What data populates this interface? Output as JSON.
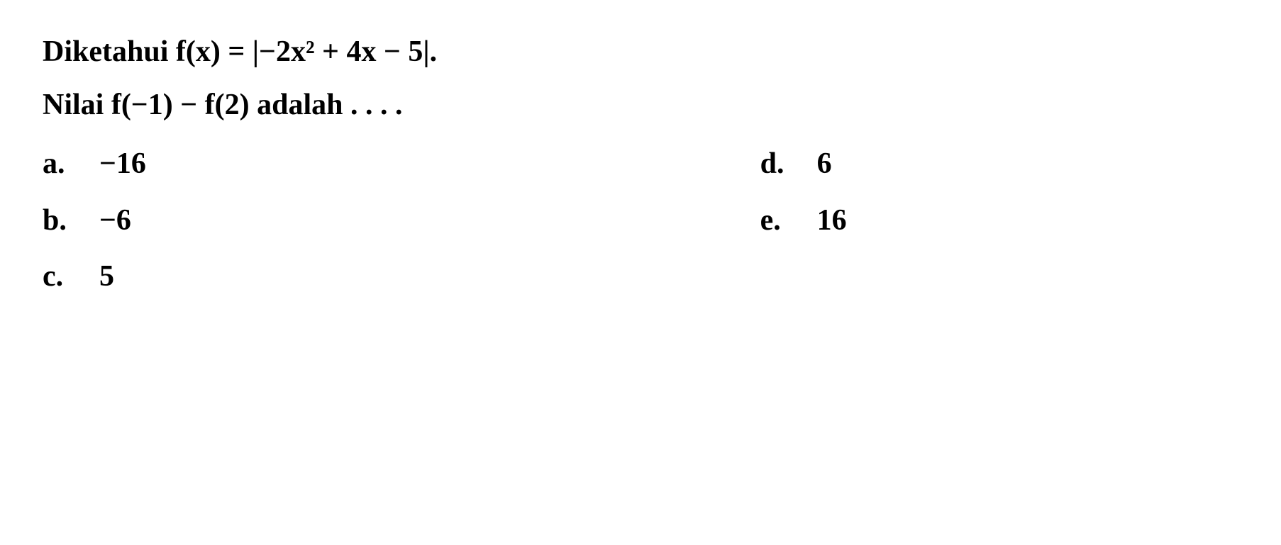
{
  "question": {
    "line1": "Diketahui f(x) = |−2x² + 4x − 5|.",
    "line2": "Nilai f(−1) − f(2) adalah . . . ."
  },
  "options": {
    "a": {
      "letter": "a.",
      "value": "−16"
    },
    "b": {
      "letter": "b.",
      "value": "−6"
    },
    "c": {
      "letter": "c.",
      "value": "5"
    },
    "d": {
      "letter": "d.",
      "value": "6"
    },
    "e": {
      "letter": "e.",
      "value": "16"
    }
  },
  "styling": {
    "background_color": "#ffffff",
    "text_color": "#000000",
    "font_family": "Georgia, Times New Roman, serif",
    "font_size": 42,
    "font_weight": "bold",
    "line_height": 1.6
  }
}
